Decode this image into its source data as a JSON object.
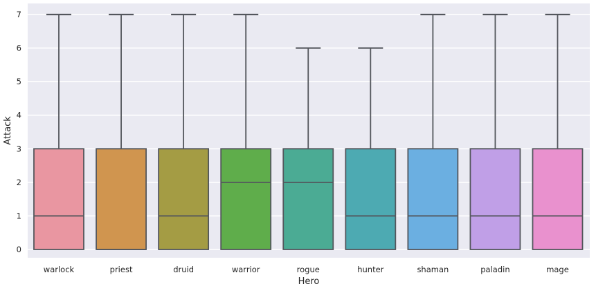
{
  "figure": {
    "background": "#ffffff"
  },
  "chart_data": {
    "type": "box",
    "title": "",
    "xlabel": "Hero",
    "ylabel": "Attack",
    "categories": [
      "warlock",
      "priest",
      "druid",
      "warrior",
      "rogue",
      "hunter",
      "shaman",
      "paladin",
      "mage"
    ],
    "boxes": [
      {
        "category": "warlock",
        "whisker_low": 0,
        "q1": 0,
        "median": 1,
        "q3": 3,
        "whisker_high": 7,
        "color": "#e996a1"
      },
      {
        "category": "priest",
        "whisker_low": 0,
        "q1": 0,
        "median": 0,
        "q3": 3,
        "whisker_high": 7,
        "color": "#d0954f"
      },
      {
        "category": "druid",
        "whisker_low": 0,
        "q1": 0,
        "median": 1,
        "q3": 3,
        "whisker_high": 7,
        "color": "#a49c44"
      },
      {
        "category": "warrior",
        "whisker_low": 0,
        "q1": 0,
        "median": 2,
        "q3": 3,
        "whisker_high": 7,
        "color": "#5fad4b"
      },
      {
        "category": "rogue",
        "whisker_low": 0,
        "q1": 0,
        "median": 2,
        "q3": 3,
        "whisker_high": 6,
        "color": "#4bab94"
      },
      {
        "category": "hunter",
        "whisker_low": 0,
        "q1": 0,
        "median": 1,
        "q3": 3,
        "whisker_high": 6,
        "color": "#4daab2"
      },
      {
        "category": "shaman",
        "whisker_low": 0,
        "q1": 0,
        "median": 1,
        "q3": 3,
        "whisker_high": 7,
        "color": "#6bafe1"
      },
      {
        "category": "paladin",
        "whisker_low": 0,
        "q1": 0,
        "median": 1,
        "q3": 3,
        "whisker_high": 7,
        "color": "#c09fe7"
      },
      {
        "category": "mage",
        "whisker_low": 0,
        "q1": 0,
        "median": 1,
        "q3": 3,
        "whisker_high": 7,
        "color": "#e991ce"
      }
    ],
    "yticks": [
      0,
      1,
      2,
      3,
      4,
      5,
      6,
      7
    ],
    "ylim": [
      -0.35,
      7.35
    ],
    "grid": true,
    "legend": "none",
    "plot_background": "#eaeaf2",
    "grid_color": "#ffffff",
    "box_edge_color": "#53565c",
    "text_color": "#262626"
  }
}
